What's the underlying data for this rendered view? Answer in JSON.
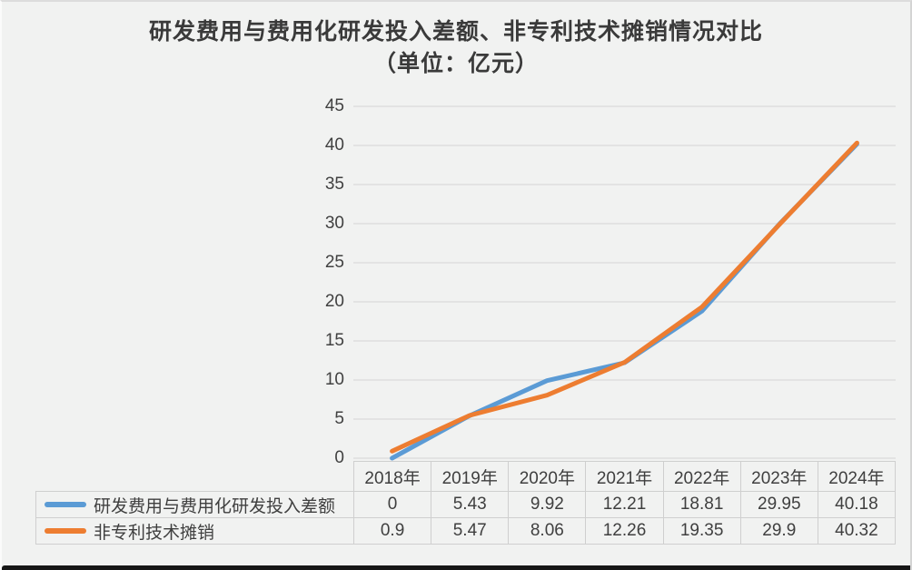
{
  "chart": {
    "title_line1": "研发费用与费用化研发投入差额、非专利技术摊销情况对比",
    "title_line2": "（单位：亿元）"
  },
  "chart_data": {
    "type": "line",
    "title": "研发费用与费用化研发投入差额、非专利技术摊销情况对比",
    "subtitle": "（单位：亿元）",
    "unit": "亿元",
    "categories": [
      "2018年",
      "2019年",
      "2020年",
      "2021年",
      "2022年",
      "2023年",
      "2024年"
    ],
    "series": [
      {
        "name": "研发费用与费用化研发投入差额",
        "color": "#5B9BD5",
        "values": [
          0,
          5.43,
          9.92,
          12.21,
          18.81,
          29.95,
          40.18
        ],
        "labels": [
          "0",
          "5.43",
          "9.92",
          "12.21",
          "18.81",
          "29.95",
          "40.18"
        ]
      },
      {
        "name": "非专利技术摊销",
        "color": "#ED7D31",
        "values": [
          0.9,
          5.47,
          8.06,
          12.26,
          19.35,
          29.9,
          40.32
        ],
        "labels": [
          "0.9",
          "5.47",
          "8.06",
          "12.26",
          "19.35",
          "29.9",
          "40.32"
        ]
      }
    ],
    "ylim": [
      0,
      45
    ],
    "ytick_step": 5,
    "yticks": [
      0,
      5,
      10,
      15,
      20,
      25,
      30,
      35,
      40,
      45
    ],
    "grid": true,
    "legend_position": "data-table-left",
    "data_table": true
  },
  "colors": {
    "background": "#f1f2f1",
    "gridline": "#e3e3e3",
    "table_border": "#cfcfcf",
    "text": "#3f3f3f",
    "window_bottom_edge": "#161616"
  }
}
